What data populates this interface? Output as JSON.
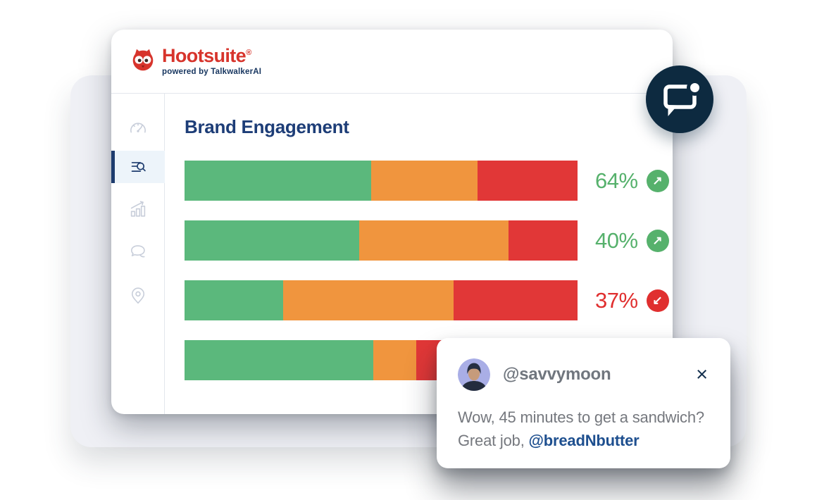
{
  "brand": {
    "name": "Hootsuite",
    "registered_mark": "®",
    "tagline": "powered by TalkwalkerAI",
    "brand_color": "#D7342C",
    "navy_color": "#16355F"
  },
  "sidebar": {
    "items": [
      {
        "icon": "gauge-icon",
        "active": false
      },
      {
        "icon": "list-search-icon",
        "active": true
      },
      {
        "icon": "bar-chart-trend-icon",
        "active": false
      },
      {
        "icon": "chat-bubbles-icon",
        "active": false
      },
      {
        "icon": "location-pin-icon",
        "active": false
      }
    ],
    "active_accent_color": "#1E3C6E",
    "inactive_icon_color": "#C8CEDA"
  },
  "chart_data": {
    "type": "bar",
    "orientation": "horizontal",
    "stacked": true,
    "title": "Brand Engagement",
    "title_color": "#1D3D77",
    "legend": "none",
    "grid": false,
    "segment_colors": {
      "green": "#5BB87C",
      "orange": "#F0953E",
      "red": "#E13737"
    },
    "trend_colors": {
      "up": "#56B16C",
      "down": "#E02F2F"
    },
    "trend_glyphs": {
      "up": "↗",
      "down": "↙"
    },
    "bars": [
      {
        "value": 64,
        "label": "64%",
        "trend": "up",
        "segments_pct": {
          "green": 47.5,
          "orange": 27.0,
          "red": 25.5
        }
      },
      {
        "value": 40,
        "label": "40%",
        "trend": "up",
        "segments_pct": {
          "green": 44.5,
          "orange": 38.0,
          "red": 17.5
        }
      },
      {
        "value": 37,
        "label": "37%",
        "trend": "down",
        "segments_pct": {
          "green": 25.0,
          "orange": 43.5,
          "red": 31.5
        }
      },
      {
        "value": null,
        "label": null,
        "trend": null,
        "segments_pct": {
          "green": 48.0,
          "orange": 11.0,
          "red": 41.0
        }
      }
    ]
  },
  "chat_badge": {
    "icon": "chat-notification-icon",
    "bg_color": "#0D2A40"
  },
  "notification": {
    "username": "@savvymoon",
    "username_color": "#70767E",
    "close_glyph": "×",
    "message_line1": "Wow, 45 minutes to get a sandwich?",
    "message_line2_prefix": "Great job, ",
    "mention": "@breadNbutter",
    "mention_color": "#1E4F8F"
  }
}
